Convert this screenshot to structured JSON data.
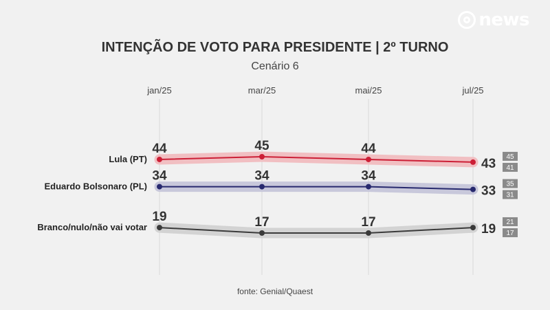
{
  "brand": {
    "name": "news",
    "icon": "globo-icon"
  },
  "colors": {
    "lula": "#cc1f36",
    "lula_band": "#f1b9bd",
    "bolsonaro": "#27296e",
    "bolsonaro_band": "#c3c3d8",
    "branco": "#3a3a3a",
    "branco_band": "#cfcfcf",
    "range_box": "#8a8a8a"
  },
  "chart_data": {
    "type": "line",
    "title": "INTENÇÃO DE VOTO PARA PRESIDENTE | 2º TURNO",
    "subtitle": "Cenário 6",
    "source": "fonte: Genial/Quaest",
    "categories": [
      "jan/25",
      "mar/25",
      "mai/25",
      "jul/25"
    ],
    "grid": "vertical",
    "series": [
      {
        "name": "Lula (PT)",
        "values": [
          44,
          45,
          44,
          43
        ],
        "range_last": [
          45,
          41
        ]
      },
      {
        "name": "Eduardo Bolsonaro (PL)",
        "values": [
          34,
          34,
          34,
          33
        ],
        "range_last": [
          35,
          31
        ]
      },
      {
        "name": "Branco/nulo/não vai votar",
        "values": [
          19,
          17,
          17,
          19
        ],
        "range_last": [
          21,
          17
        ]
      }
    ]
  }
}
